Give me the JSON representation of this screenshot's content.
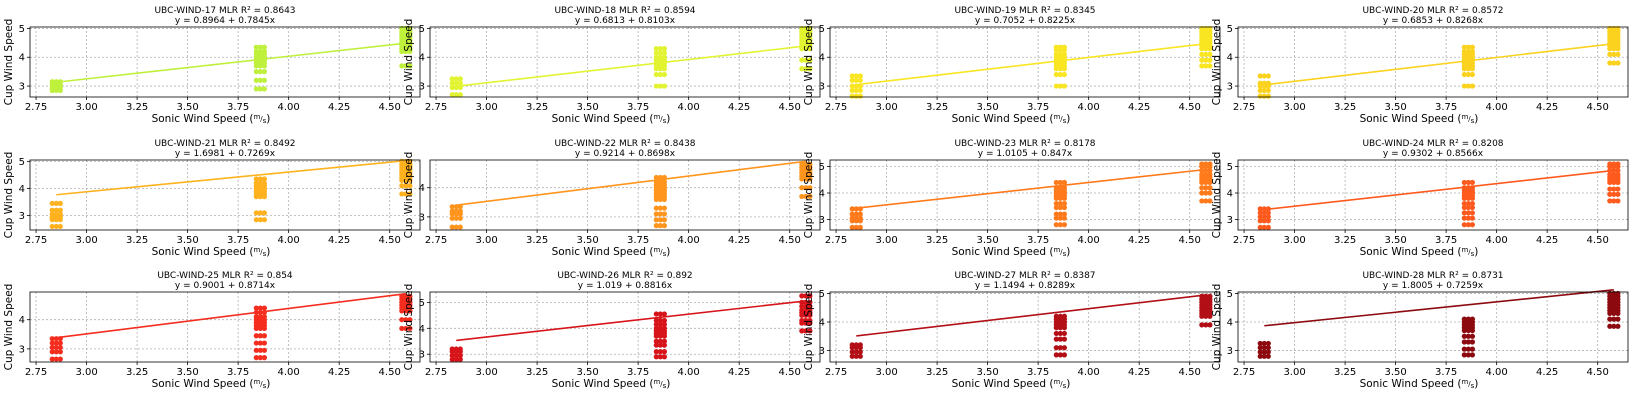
{
  "chart_data": [
    {
      "type": "scatter",
      "title": "UBC-WIND-17  MLR R² = 0.8643",
      "subtitle": "y = 0.8964 + 0.7845x",
      "xlabel": "Sonic Wind Speed (m/s)",
      "ylabel": "Cup Wind Speed",
      "xlim": [
        2.72,
        4.65
      ],
      "ylim": [
        2.62,
        5.05
      ],
      "xticks": [
        "2.75",
        "3.00",
        "3.25",
        "3.50",
        "3.75",
        "4.00",
        "4.25",
        "4.50"
      ],
      "yticks": [
        "3",
        "4",
        "5"
      ],
      "grid": true,
      "color": "#bff03c",
      "intercept": 0.8964,
      "slope": 0.7845,
      "clusters": [
        {
          "x": 2.85,
          "ys": [
            2.85,
            2.95,
            3.05,
            3.15
          ]
        },
        {
          "x": 3.86,
          "ys": [
            2.9,
            3.2,
            3.5,
            3.7,
            3.8,
            3.9,
            4.0,
            4.1,
            4.2,
            4.35
          ]
        },
        {
          "x": 4.58,
          "ys": [
            3.7,
            4.2,
            4.3,
            4.4,
            4.5,
            4.6,
            4.7,
            4.8,
            4.9,
            5.0
          ]
        }
      ]
    },
    {
      "type": "scatter",
      "title": "UBC-WIND-18  MLR R² = 0.8594",
      "subtitle": "y = 0.6813 + 0.8103x",
      "xlabel": "Sonic Wind Speed (m/s)",
      "ylabel": "Cup Wind Speed",
      "xlim": [
        2.72,
        4.65
      ],
      "ylim": [
        2.62,
        5.05
      ],
      "xticks": [
        "2.75",
        "3.00",
        "3.25",
        "3.50",
        "3.75",
        "4.00",
        "4.25",
        "4.50"
      ],
      "yticks": [
        "3",
        "4",
        "5"
      ],
      "grid": true,
      "color": "#e2f431",
      "intercept": 0.6813,
      "slope": 0.8103,
      "clusters": [
        {
          "x": 2.85,
          "ys": [
            2.7,
            2.95,
            3.1,
            3.25
          ]
        },
        {
          "x": 3.86,
          "ys": [
            3.0,
            3.4,
            3.6,
            3.7,
            3.8,
            3.9,
            4.0,
            4.15,
            4.3
          ]
        },
        {
          "x": 4.58,
          "ys": [
            3.6,
            3.9,
            4.3,
            4.4,
            4.5,
            4.6,
            4.7,
            4.8,
            4.9,
            5.0
          ]
        }
      ]
    },
    {
      "type": "scatter",
      "title": "UBC-WIND-19  MLR R² = 0.8345",
      "subtitle": "y = 0.7052 + 0.8225x",
      "xlabel": "Sonic Wind Speed (m/s)",
      "ylabel": "Cup Wind Speed",
      "xlim": [
        2.72,
        4.65
      ],
      "ylim": [
        2.62,
        5.05
      ],
      "xticks": [
        "2.75",
        "3.00",
        "3.25",
        "3.50",
        "3.75",
        "4.00",
        "4.25",
        "4.50"
      ],
      "yticks": [
        "3",
        "4",
        "5"
      ],
      "grid": true,
      "color": "#f9e521",
      "intercept": 0.7052,
      "slope": 0.8225,
      "clusters": [
        {
          "x": 2.85,
          "ys": [
            2.65,
            2.85,
            3.0,
            3.2,
            3.35
          ]
        },
        {
          "x": 3.86,
          "ys": [
            3.0,
            3.4,
            3.6,
            3.7,
            3.8,
            3.9,
            4.0,
            4.1,
            4.25,
            4.35
          ]
        },
        {
          "x": 4.58,
          "ys": [
            3.7,
            3.9,
            4.1,
            4.3,
            4.4,
            4.5,
            4.6,
            4.7,
            4.8,
            4.9,
            5.0
          ]
        }
      ]
    },
    {
      "type": "scatter",
      "title": "UBC-WIND-20  MLR R² = 0.8572",
      "subtitle": "y = 0.6853 + 0.8268x",
      "xlabel": "Sonic Wind Speed (m/s)",
      "ylabel": "Cup Wind Speed",
      "xlim": [
        2.72,
        4.65
      ],
      "ylim": [
        2.62,
        5.05
      ],
      "xticks": [
        "2.75",
        "3.00",
        "3.25",
        "3.50",
        "3.75",
        "4.00",
        "4.25",
        "4.50"
      ],
      "yticks": [
        "3",
        "4",
        "5"
      ],
      "grid": true,
      "color": "#fbd21e",
      "intercept": 0.6853,
      "slope": 0.8268,
      "clusters": [
        {
          "x": 2.85,
          "ys": [
            2.65,
            2.85,
            3.0,
            3.1,
            3.35
          ]
        },
        {
          "x": 3.86,
          "ys": [
            3.0,
            3.4,
            3.6,
            3.7,
            3.8,
            3.9,
            4.0,
            4.1,
            4.2,
            4.35
          ]
        },
        {
          "x": 4.58,
          "ys": [
            3.8,
            4.1,
            4.3,
            4.4,
            4.5,
            4.6,
            4.7,
            4.8,
            4.9,
            5.0
          ]
        }
      ]
    },
    {
      "type": "scatter",
      "title": "UBC-WIND-21  MLR R² = 0.8492",
      "subtitle": "y = 1.6981 + 0.7269x",
      "xlabel": "Sonic Wind Speed (m/s)",
      "ylabel": "Cup Wind Speed",
      "xlim": [
        2.72,
        4.65
      ],
      "ylim": [
        2.47,
        5.05
      ],
      "xticks": [
        "2.75",
        "3.00",
        "3.25",
        "3.50",
        "3.75",
        "4.00",
        "4.25",
        "4.50"
      ],
      "yticks": [
        "3",
        "4",
        "5"
      ],
      "grid": true,
      "color": "#ffb21e",
      "intercept": 1.6981,
      "slope": 0.7269,
      "clusters": [
        {
          "x": 2.85,
          "ys": [
            2.6,
            2.85,
            2.95,
            3.05,
            3.2,
            3.45
          ]
        },
        {
          "x": 3.86,
          "ys": [
            2.85,
            3.1,
            3.7,
            3.8,
            3.9,
            4.0,
            4.1,
            4.2,
            4.35
          ]
        },
        {
          "x": 4.58,
          "ys": [
            3.8,
            4.1,
            4.3,
            4.4,
            4.5,
            4.6,
            4.7,
            4.8,
            4.9,
            5.0
          ]
        }
      ]
    },
    {
      "type": "scatter",
      "title": "UBC-WIND-22  MLR R² = 0.8438",
      "subtitle": "y = 0.9214 + 0.8698x",
      "xlabel": "Sonic Wind Speed (m/s)",
      "ylabel": "Cup Wind Speed",
      "xlim": [
        2.72,
        4.65
      ],
      "ylim": [
        2.55,
        4.95
      ],
      "xticks": [
        "2.75",
        "3.00",
        "3.25",
        "3.50",
        "3.75",
        "4.00",
        "4.25",
        "4.50"
      ],
      "yticks": [
        "3",
        "4"
      ],
      "grid": true,
      "color": "#ff951c",
      "intercept": 0.9214,
      "slope": 0.8698,
      "clusters": [
        {
          "x": 2.85,
          "ys": [
            2.65,
            2.95,
            3.1,
            3.2,
            3.35
          ]
        },
        {
          "x": 3.86,
          "ys": [
            2.7,
            2.9,
            3.1,
            3.3,
            3.6,
            3.7,
            3.8,
            3.9,
            4.0,
            4.1,
            4.2,
            4.35
          ]
        },
        {
          "x": 4.58,
          "ys": [
            3.7,
            4.0,
            4.3,
            4.4,
            4.5,
            4.6,
            4.7,
            4.8
          ]
        }
      ]
    },
    {
      "type": "scatter",
      "title": "UBC-WIND-23  MLR R² = 0.8178",
      "subtitle": "y = 1.0105 + 0.847x",
      "xlabel": "Sonic Wind Speed (m/s)",
      "ylabel": "Cup Wind Speed",
      "xlim": [
        2.72,
        4.65
      ],
      "ylim": [
        2.6,
        5.25
      ],
      "xticks": [
        "2.75",
        "3.00",
        "3.25",
        "3.50",
        "3.75",
        "4.00",
        "4.25",
        "4.50"
      ],
      "yticks": [
        "3",
        "4",
        "5"
      ],
      "grid": true,
      "color": "#ff7a1a",
      "intercept": 1.0105,
      "slope": 0.847,
      "clusters": [
        {
          "x": 2.85,
          "ys": [
            2.7,
            2.95,
            3.05,
            3.2,
            3.4
          ]
        },
        {
          "x": 3.86,
          "ys": [
            2.8,
            3.05,
            3.2,
            3.45,
            3.6,
            3.8,
            3.9,
            4.0,
            4.1,
            4.2,
            4.4
          ]
        },
        {
          "x": 4.58,
          "ys": [
            3.7,
            4.0,
            4.2,
            4.4,
            4.5,
            4.6,
            4.7,
            4.85,
            5.0,
            5.1
          ]
        }
      ]
    },
    {
      "type": "scatter",
      "title": "UBC-WIND-24  MLR R² = 0.8208",
      "subtitle": "y = 0.9302 + 0.8566x",
      "xlabel": "Sonic Wind Speed (m/s)",
      "ylabel": "Cup Wind Speed",
      "xlim": [
        2.72,
        4.65
      ],
      "ylim": [
        2.6,
        5.25
      ],
      "xticks": [
        "2.75",
        "3.00",
        "3.25",
        "3.50",
        "3.75",
        "4.00",
        "4.25",
        "4.50"
      ],
      "yticks": [
        "3",
        "4",
        "5"
      ],
      "grid": true,
      "color": "#ff5a1e",
      "intercept": 0.9302,
      "slope": 0.8566,
      "clusters": [
        {
          "x": 2.85,
          "ys": [
            2.7,
            2.95,
            3.1,
            3.25,
            3.4
          ]
        },
        {
          "x": 3.86,
          "ys": [
            2.8,
            3.05,
            3.25,
            3.45,
            3.6,
            3.8,
            3.9,
            4.0,
            4.1,
            4.2,
            4.4
          ]
        },
        {
          "x": 4.58,
          "ys": [
            3.7,
            3.95,
            4.15,
            4.4,
            4.5,
            4.6,
            4.7,
            4.85,
            5.0,
            5.1
          ]
        }
      ]
    },
    {
      "type": "scatter",
      "title": "UBC-WIND-25  MLR R² = 0.854",
      "subtitle": "y = 0.9001 + 0.8714x",
      "xlabel": "Sonic Wind Speed (m/s)",
      "ylabel": "Cup Wind Speed",
      "xlim": [
        2.72,
        4.65
      ],
      "ylim": [
        2.55,
        4.95
      ],
      "xticks": [
        "2.75",
        "3.00",
        "3.25",
        "3.50",
        "3.75",
        "4.00",
        "4.25",
        "4.50"
      ],
      "yticks": [
        "3",
        "4"
      ],
      "grid": true,
      "color": "#f52d1e",
      "intercept": 0.9001,
      "slope": 0.8714,
      "clusters": [
        {
          "x": 2.85,
          "ys": [
            2.65,
            2.9,
            3.05,
            3.2,
            3.35
          ]
        },
        {
          "x": 3.86,
          "ys": [
            2.7,
            2.95,
            3.2,
            3.45,
            3.7,
            3.8,
            3.9,
            4.0,
            4.1,
            4.25,
            4.4
          ]
        },
        {
          "x": 4.58,
          "ys": [
            3.7,
            4.0,
            4.3,
            4.4,
            4.5,
            4.6,
            4.7,
            4.8
          ]
        }
      ]
    },
    {
      "type": "scatter",
      "title": "UBC-WIND-26  MLR R² = 0.892",
      "subtitle": "y = 1.019 + 0.8816x",
      "xlabel": "Sonic Wind Speed (m/s)",
      "ylabel": "Cup Wind Speed",
      "xlim": [
        2.72,
        4.65
      ],
      "ylim": [
        2.7,
        5.4
      ],
      "xticks": [
        "2.75",
        "3.00",
        "3.25",
        "3.50",
        "3.75",
        "4.00",
        "4.25",
        "4.50"
      ],
      "yticks": [
        "3",
        "4",
        "5"
      ],
      "grid": true,
      "color": "#d7141a",
      "intercept": 1.019,
      "slope": 0.8816,
      "clusters": [
        {
          "x": 2.85,
          "ys": [
            2.8,
            2.95,
            3.1,
            3.2
          ]
        },
        {
          "x": 3.86,
          "ys": [
            2.9,
            3.1,
            3.35,
            3.5,
            3.7,
            3.8,
            3.9,
            4.0,
            4.15,
            4.3,
            4.55
          ]
        },
        {
          "x": 4.58,
          "ys": [
            3.9,
            4.2,
            4.3,
            4.5,
            4.6,
            4.7,
            4.85,
            5.0,
            5.25
          ]
        }
      ]
    },
    {
      "type": "scatter",
      "title": "UBC-WIND-27  MLR R² = 0.8387",
      "subtitle": "y = 1.1494 + 0.8289x",
      "xlabel": "Sonic Wind Speed (m/s)",
      "ylabel": "Cup Wind Speed",
      "xlim": [
        2.72,
        4.65
      ],
      "ylim": [
        2.6,
        5.05
      ],
      "xticks": [
        "2.75",
        "3.00",
        "3.25",
        "3.50",
        "3.75",
        "4.00",
        "4.25",
        "4.50"
      ],
      "yticks": [
        "3",
        "4",
        "5"
      ],
      "grid": true,
      "color": "#b20f16",
      "intercept": 1.1494,
      "slope": 0.8289,
      "clusters": [
        {
          "x": 2.85,
          "ys": [
            2.8,
            2.95,
            3.1,
            3.2
          ]
        },
        {
          "x": 3.86,
          "ys": [
            2.85,
            3.1,
            3.4,
            3.6,
            3.8,
            3.9,
            4.0,
            4.1,
            4.2
          ]
        },
        {
          "x": 4.58,
          "ys": [
            3.9,
            4.2,
            4.3,
            4.4,
            4.5,
            4.6,
            4.7,
            4.8,
            4.9
          ]
        }
      ]
    },
    {
      "type": "scatter",
      "title": "UBC-WIND-28  MLR R² = 0.8731",
      "subtitle": "y = 1.8005 + 0.7259x",
      "xlabel": "Sonic Wind Speed (m/s)",
      "ylabel": "Cup Wind Speed",
      "xlim": [
        2.72,
        4.65
      ],
      "ylim": [
        2.6,
        5.05
      ],
      "xticks": [
        "2.75",
        "3.00",
        "3.25",
        "3.50",
        "3.75",
        "4.00",
        "4.25",
        "4.50"
      ],
      "yticks": [
        "3",
        "4",
        "5"
      ],
      "grid": true,
      "color": "#8c0a0f",
      "intercept": 1.8005,
      "slope": 0.7259,
      "clusters": [
        {
          "x": 2.85,
          "ys": [
            2.8,
            2.95,
            3.1,
            3.25
          ]
        },
        {
          "x": 3.86,
          "ys": [
            2.85,
            3.05,
            3.3,
            3.5,
            3.7,
            3.8,
            3.9,
            4.0,
            4.1
          ]
        },
        {
          "x": 4.58,
          "ys": [
            3.85,
            4.1,
            4.3,
            4.4,
            4.5,
            4.6,
            4.7,
            4.8,
            4.9,
            5.0
          ]
        }
      ]
    }
  ]
}
